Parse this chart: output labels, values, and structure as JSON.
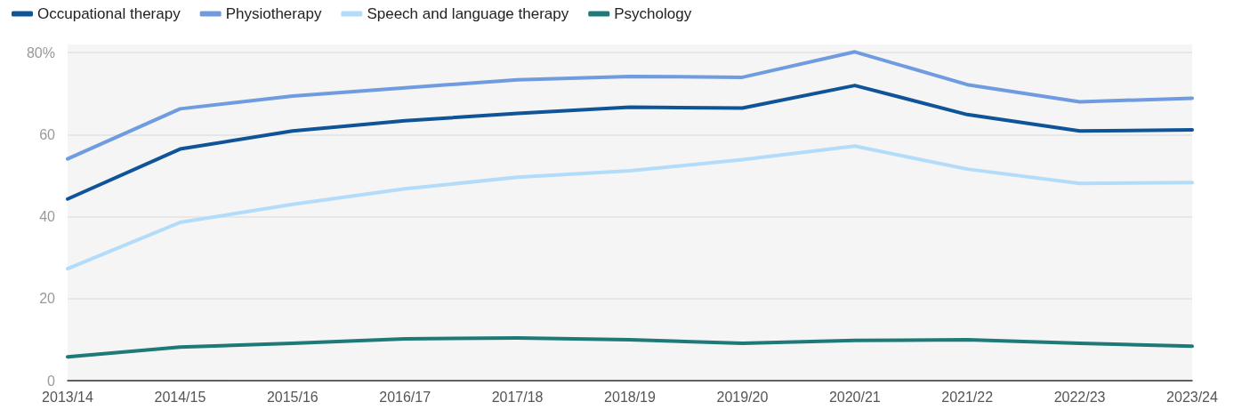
{
  "chart_data": {
    "type": "line",
    "categories": [
      "2013/14",
      "2014/15",
      "2015/16",
      "2016/17",
      "2017/18",
      "2018/19",
      "2019/20",
      "2020/21",
      "2021/22",
      "2022/23",
      "2023/24"
    ],
    "series": [
      {
        "name": "Occupational therapy",
        "color": "#0f5499",
        "values": [
          44.3,
          56.5,
          60.9,
          63.4,
          65.2,
          66.7,
          66.5,
          72.0,
          64.9,
          60.9,
          61.2
        ]
      },
      {
        "name": "Physiotherapy",
        "color": "#6f9be0",
        "values": [
          54.1,
          66.3,
          69.4,
          71.4,
          73.4,
          74.2,
          74.0,
          80.2,
          72.2,
          68.0,
          68.9
        ]
      },
      {
        "name": "Speech and language therapy",
        "color": "#b3dcfb",
        "values": [
          27.3,
          38.6,
          43.0,
          46.8,
          49.6,
          51.2,
          53.9,
          57.2,
          51.6,
          48.1,
          48.3
        ]
      },
      {
        "name": "Psychology",
        "color": "#1d7a78",
        "values": [
          5.8,
          8.2,
          9.1,
          10.2,
          10.4,
          10.0,
          9.1,
          9.8,
          10.0,
          9.1,
          8.4
        ]
      }
    ],
    "ylim": [
      0,
      82
    ],
    "yticks": [
      0,
      20,
      40,
      60,
      {
        "value": 80,
        "label": "80%"
      }
    ],
    "grid": "y",
    "legend": "top left",
    "marker": "none",
    "line_style": "solid"
  }
}
